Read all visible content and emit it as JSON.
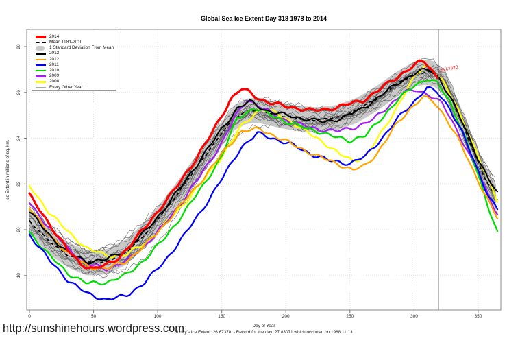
{
  "footer": {
    "url": "http://sunshinehours.wordpress.com",
    "today_line": "Today's Ice Extent: 26.67378  - Record for the day: 27.83071 which occurred on 1988 11 13"
  },
  "legend": [
    {
      "label": "2014",
      "swatch": "thick",
      "color": "#ff0000"
    },
    {
      "label": "Mean 1981-2010",
      "swatch": "dashed",
      "color": "#000000"
    },
    {
      "label": "1 Standard Deviation From Mean",
      "swatch": "band",
      "color": "#c9c9c9"
    },
    {
      "label": "2013",
      "swatch": "line",
      "color": "#000000"
    },
    {
      "label": "2012",
      "swatch": "line",
      "color": "#ffa500"
    },
    {
      "label": "2011",
      "swatch": "line",
      "color": "#0000ff"
    },
    {
      "label": "2010",
      "swatch": "line",
      "color": "#00dd00"
    },
    {
      "label": "2009",
      "swatch": "line",
      "color": "#a020f0"
    },
    {
      "label": "2008",
      "swatch": "line",
      "color": "#ffff00"
    },
    {
      "label": "Every Other Year",
      "swatch": "thin",
      "color": "#aaaaaa"
    }
  ],
  "chart_data": {
    "type": "line",
    "title": "Global Sea Ice Extent Day 318 1978 to 2014",
    "xlabel": "Day of Year",
    "ylabel": "Ice Extent in millions of sq. km.",
    "xlim": [
      0,
      365
    ],
    "ylim": [
      16.5,
      28.75
    ],
    "xticks": [
      0,
      50,
      100,
      150,
      200,
      250,
      300,
      350
    ],
    "yticks": [
      18,
      20,
      22,
      24,
      26,
      28
    ],
    "grid": true,
    "legend_position": "top-left",
    "marker_day": 319,
    "annotation": {
      "text": "26.67378",
      "day": 320,
      "value": 26.95,
      "color": "#ff0000"
    },
    "colors": {
      "grid": "#d8d8d8",
      "box": "#888888",
      "tick": "#333333",
      "marker": "#555555"
    },
    "band": {
      "label": "1 Standard Deviation From Mean",
      "halfwidth": 0.55,
      "color": "#c9c9c9"
    },
    "background_years": {
      "label": "Every Other Year",
      "count": 16,
      "color": "#555555"
    },
    "mean": {
      "label": "Mean 1981-2010",
      "color": "#000000",
      "dashed": true,
      "x": [
        0,
        15,
        30,
        45,
        60,
        75,
        90,
        105,
        120,
        135,
        150,
        160,
        170,
        180,
        195,
        210,
        225,
        240,
        255,
        270,
        285,
        300,
        310,
        318,
        325,
        335,
        345,
        355,
        365
      ],
      "values": [
        20.4,
        19.5,
        18.9,
        18.55,
        18.6,
        19.0,
        19.8,
        20.8,
        21.9,
        23.1,
        24.2,
        24.9,
        25.2,
        25.2,
        25.0,
        24.85,
        24.8,
        24.9,
        25.2,
        25.7,
        26.3,
        26.8,
        26.9,
        26.75,
        26.3,
        25.0,
        23.6,
        22.3,
        21.3
      ]
    },
    "series": [
      {
        "name": "2008",
        "color": "#ffff00",
        "width": 2.3,
        "x": [
          0,
          15,
          30,
          45,
          60,
          75,
          90,
          105,
          120,
          135,
          150,
          165,
          180,
          192,
          205,
          218,
          230,
          242,
          252,
          262,
          272,
          283,
          293,
          302,
          309,
          315,
          322,
          332,
          342,
          352,
          360,
          365
        ],
        "values": [
          21.9,
          20.8,
          19.9,
          19.2,
          18.85,
          18.9,
          19.4,
          20.2,
          21.1,
          22.1,
          23.2,
          24.5,
          25.3,
          25.1,
          24.7,
          24.2,
          23.8,
          23.3,
          23.0,
          23.2,
          24.0,
          25.0,
          26.0,
          26.8,
          27.2,
          27.0,
          26.5,
          25.5,
          24.3,
          22.9,
          21.9,
          21.3
        ]
      },
      {
        "name": "2009",
        "color": "#a020f0",
        "width": 2.3,
        "x": [
          0,
          15,
          30,
          45,
          60,
          75,
          90,
          105,
          120,
          135,
          150,
          160,
          170,
          182,
          195,
          210,
          225,
          240,
          255,
          268,
          280,
          292,
          302,
          312,
          322,
          335,
          348,
          358,
          365
        ],
        "values": [
          21.2,
          20.1,
          19.2,
          18.5,
          18.3,
          18.6,
          19.3,
          20.2,
          21.3,
          22.5,
          23.8,
          24.9,
          25.7,
          25.3,
          24.9,
          24.6,
          24.4,
          24.3,
          24.5,
          24.8,
          25.4,
          26.0,
          26.1,
          25.9,
          25.5,
          24.2,
          22.7,
          21.5,
          20.7
        ]
      },
      {
        "name": "2010",
        "color": "#00dd00",
        "width": 2.3,
        "x": [
          0,
          15,
          30,
          45,
          60,
          75,
          90,
          105,
          120,
          135,
          150,
          162,
          175,
          190,
          205,
          220,
          235,
          250,
          262,
          275,
          288,
          300,
          310,
          318,
          328,
          338,
          348,
          358,
          365
        ],
        "values": [
          19.9,
          18.9,
          18.1,
          17.65,
          17.7,
          18.0,
          18.7,
          19.6,
          20.7,
          21.9,
          23.2,
          24.9,
          25.3,
          25.0,
          24.6,
          24.4,
          24.1,
          23.9,
          24.1,
          24.9,
          25.7,
          26.3,
          26.6,
          26.4,
          25.6,
          24.3,
          22.7,
          21.0,
          19.9
        ]
      },
      {
        "name": "2011",
        "color": "#0000ff",
        "width": 2.3,
        "x": [
          0,
          15,
          30,
          45,
          60,
          75,
          90,
          105,
          120,
          135,
          150,
          165,
          178,
          190,
          205,
          220,
          235,
          250,
          262,
          275,
          288,
          300,
          310,
          318,
          328,
          338,
          348,
          358,
          365
        ],
        "values": [
          19.8,
          18.7,
          17.8,
          17.2,
          16.95,
          17.1,
          17.7,
          18.6,
          19.7,
          20.9,
          22.2,
          23.6,
          24.2,
          24.0,
          23.7,
          23.3,
          23.0,
          22.9,
          23.2,
          24.0,
          24.9,
          25.6,
          26.2,
          26.0,
          25.3,
          24.2,
          22.8,
          21.5,
          20.9
        ]
      },
      {
        "name": "2012",
        "color": "#ffa500",
        "width": 2.3,
        "x": [
          0,
          15,
          30,
          45,
          60,
          75,
          90,
          105,
          120,
          135,
          150,
          165,
          180,
          195,
          210,
          225,
          240,
          252,
          262,
          272,
          285,
          297,
          307,
          315,
          325,
          335,
          345,
          355,
          365
        ],
        "values": [
          21.0,
          19.8,
          19.0,
          18.4,
          18.3,
          18.6,
          19.3,
          20.2,
          21.2,
          22.2,
          23.3,
          24.3,
          24.4,
          24.0,
          23.6,
          23.2,
          22.9,
          22.6,
          22.8,
          23.4,
          24.5,
          25.3,
          25.8,
          25.6,
          24.9,
          23.9,
          22.7,
          21.6,
          20.5
        ]
      },
      {
        "name": "2013",
        "color": "#000000",
        "width": 2.1,
        "x": [
          0,
          15,
          30,
          45,
          60,
          75,
          90,
          105,
          120,
          135,
          150,
          162,
          172,
          185,
          200,
          215,
          230,
          245,
          260,
          275,
          290,
          303,
          312,
          320,
          330,
          340,
          350,
          358,
          365
        ],
        "values": [
          20.8,
          19.8,
          19.0,
          18.6,
          18.7,
          19.1,
          19.9,
          20.9,
          22.0,
          23.2,
          24.4,
          25.3,
          25.6,
          25.2,
          25.0,
          24.85,
          24.7,
          24.9,
          25.3,
          25.9,
          26.5,
          26.9,
          27.0,
          26.6,
          25.6,
          24.4,
          23.1,
          22.2,
          21.6
        ]
      },
      {
        "name": "2014",
        "color": "#ff0000",
        "width": 3.2,
        "x": [
          0,
          10,
          20,
          30,
          40,
          50,
          60,
          70,
          80,
          90,
          100,
          110,
          120,
          130,
          140,
          150,
          157,
          165,
          172,
          180,
          190,
          200,
          210,
          220,
          230,
          240,
          250,
          260,
          270,
          280,
          290,
          298,
          304,
          308,
          312,
          315,
          318
        ],
        "values": [
          21.5,
          20.7,
          19.9,
          19.1,
          18.5,
          18.3,
          18.45,
          18.8,
          19.4,
          20.1,
          20.8,
          21.5,
          22.3,
          23.1,
          24.0,
          25.0,
          25.7,
          26.15,
          26.0,
          25.7,
          25.5,
          25.4,
          25.3,
          25.2,
          25.25,
          25.35,
          25.5,
          25.65,
          26.0,
          26.4,
          26.8,
          27.1,
          27.3,
          27.35,
          27.1,
          26.9,
          26.67
        ]
      }
    ]
  }
}
